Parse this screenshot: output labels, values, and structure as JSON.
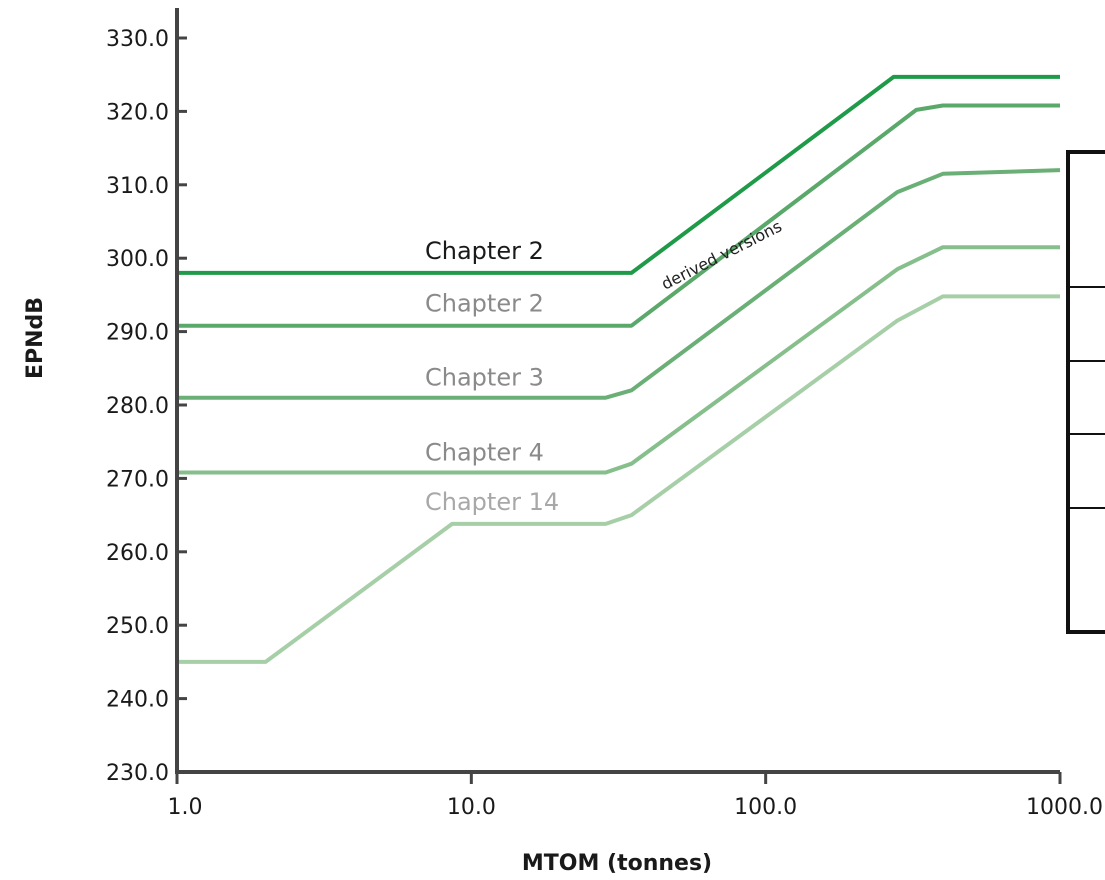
{
  "chart_data": {
    "type": "line",
    "title": "",
    "xlabel": "MTOM (tonnes)",
    "ylabel": "EPNdB",
    "x_scale": "log",
    "xlim": [
      1,
      1000
    ],
    "ylim": [
      230,
      330
    ],
    "x_ticks": [
      "1.0",
      "10.0",
      "100.0",
      "1000.0"
    ],
    "y_ticks": [
      "230.0",
      "240.0",
      "250.0",
      "260.0",
      "270.0",
      "280.0",
      "290.0",
      "300.0",
      "310.0",
      "320.0",
      "330.0"
    ],
    "grid": false,
    "series": [
      {
        "name": "Chapter 2",
        "color": "#1e9a48",
        "points": [
          [
            1.0,
            298.0
          ],
          [
            35.0,
            298.0
          ],
          [
            272.0,
            324.7
          ],
          [
            1000.0,
            324.7
          ]
        ]
      },
      {
        "name": "Chapter 2",
        "color": "#5aa86a",
        "points": [
          [
            1.0,
            290.8
          ],
          [
            35.0,
            290.8
          ],
          [
            325.0,
            320.2
          ],
          [
            400.0,
            320.8
          ],
          [
            1000.0,
            320.8
          ]
        ]
      },
      {
        "name": "Chapter 3",
        "color": "#6aaf76",
        "points": [
          [
            1.0,
            281.0
          ],
          [
            28.6,
            281.0
          ],
          [
            35.0,
            282.0
          ],
          [
            280.0,
            309.0
          ],
          [
            400.0,
            311.5
          ],
          [
            1000.0,
            312.0
          ]
        ]
      },
      {
        "name": "Chapter 4",
        "color": "#86bf8c",
        "points": [
          [
            1.0,
            270.8
          ],
          [
            28.6,
            270.8
          ],
          [
            35.0,
            272.0
          ],
          [
            280.0,
            298.5
          ],
          [
            400.0,
            301.5
          ],
          [
            1000.0,
            301.5
          ]
        ]
      },
      {
        "name": "Chapter 14",
        "color": "#a6cfa8",
        "points": [
          [
            1.0,
            245.0
          ],
          [
            2.0,
            245.0
          ],
          [
            8.6,
            263.8
          ],
          [
            28.6,
            263.8
          ],
          [
            35.0,
            265.0
          ],
          [
            280.0,
            291.5
          ],
          [
            400.0,
            294.8
          ],
          [
            1000.0,
            294.8
          ]
        ]
      }
    ],
    "series_label_colors": [
      "#1a1a1a",
      "#8a8a8a",
      "#8a8a8a",
      "#8a8a8a",
      "#a8a8a8"
    ],
    "annotations": [
      "derived versions"
    ]
  }
}
